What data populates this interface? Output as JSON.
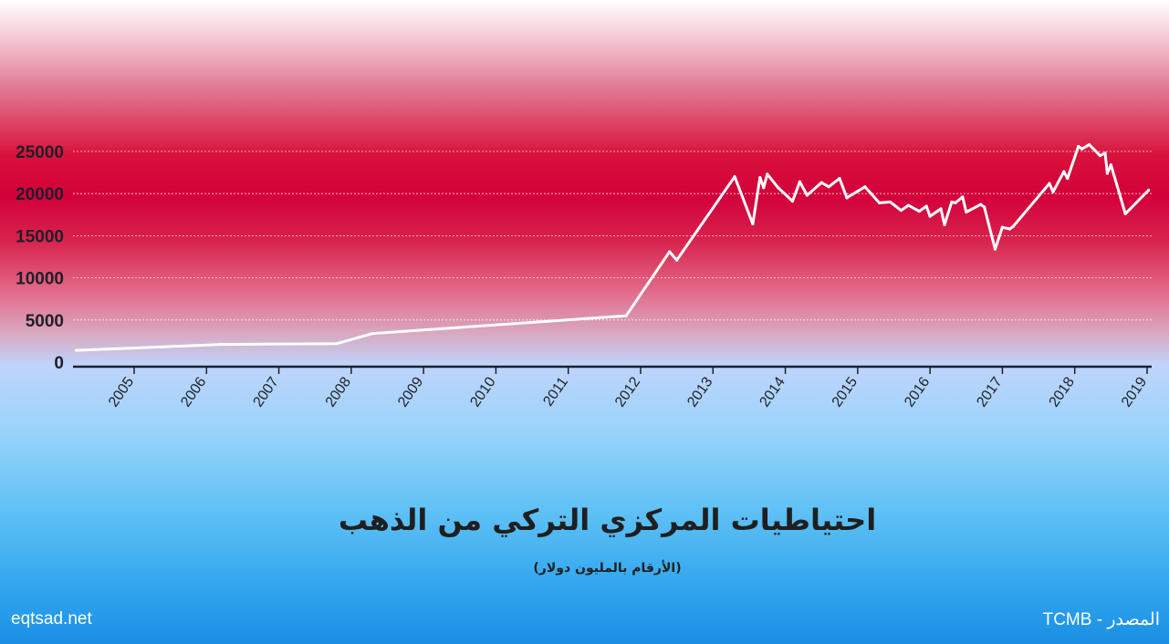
{
  "chart_data": {
    "type": "line",
    "title": "احتياطيات المركزي التركي من الذهب",
    "subtitle": "(الأرقام بالمليون دولار)",
    "ylim": [
      0,
      27000
    ],
    "y_ticks": [
      0,
      5000,
      10000,
      15000,
      20000,
      25000
    ],
    "x_ticks": [
      "2005",
      "2006",
      "2007",
      "2008",
      "2009",
      "2010",
      "2011",
      "2012",
      "2013",
      "2014",
      "2015",
      "2016",
      "2017",
      "2018",
      "2019"
    ],
    "xlim": [
      2004.15,
      2019.05
    ],
    "grid": true,
    "line_color": "#ffffff",
    "series": [
      {
        "x": [
          2004.2,
          2006.2,
          2007.8,
          2008.3,
          2011.8,
          2012.4,
          2012.5,
          2013.3,
          2013.55,
          2013.65,
          2013.7,
          2013.75,
          2013.9,
          2014.1,
          2014.2,
          2014.3,
          2014.5,
          2014.6,
          2014.75,
          2014.85,
          2015.1,
          2015.3,
          2015.45,
          2015.6,
          2015.7,
          2015.85,
          2015.95,
          2016.0,
          2016.1,
          2016.15,
          2016.2,
          2016.3,
          2016.35,
          2016.45,
          2016.5,
          2016.7,
          2016.75,
          2016.9,
          2017.0,
          2017.1,
          2017.15,
          2017.65,
          2017.7,
          2017.85,
          2017.9,
          2018.05,
          2018.1,
          2018.2,
          2018.35,
          2018.42,
          2018.45,
          2018.5,
          2018.7,
          2019.02
        ],
        "values": [
          1400,
          2100,
          2200,
          3400,
          5500,
          13100,
          12100,
          22000,
          16400,
          21900,
          20700,
          22300,
          20700,
          19100,
          21400,
          19800,
          21300,
          20800,
          21800,
          19500,
          20800,
          18900,
          19000,
          18000,
          18600,
          17900,
          18500,
          17300,
          17900,
          18200,
          16300,
          19000,
          18900,
          19600,
          17800,
          18700,
          18400,
          13400,
          16000,
          15800,
          16100,
          21200,
          20200,
          22600,
          21800,
          25600,
          25300,
          25800,
          24500,
          24800,
          22400,
          23400,
          17600,
          20400
        ]
      }
    ]
  },
  "credits": {
    "site": "eqtsad.net",
    "source": "المصدر - TCMB"
  }
}
